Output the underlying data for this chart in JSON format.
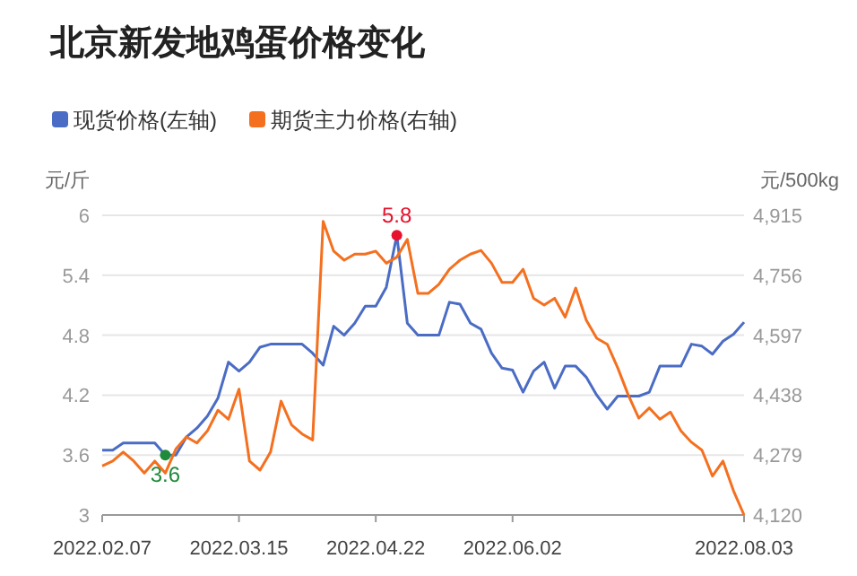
{
  "chart_data": {
    "type": "line",
    "title": "北京新发地鸡蛋价格变化",
    "ylabel": "元/斤",
    "y2label": "元/500kg",
    "categories": [
      "2022.02.07",
      null,
      null,
      null,
      null,
      null,
      null,
      null,
      null,
      null,
      null,
      null,
      null,
      "2022.03.15",
      null,
      null,
      null,
      null,
      null,
      null,
      null,
      null,
      null,
      null,
      null,
      null,
      "2022.04.22",
      null,
      null,
      null,
      null,
      null,
      null,
      null,
      null,
      null,
      null,
      null,
      null,
      "2022.06.02",
      null,
      null,
      null,
      null,
      null,
      null,
      null,
      null,
      null,
      null,
      null,
      null,
      null,
      null,
      null,
      null,
      null,
      null,
      null,
      null,
      null,
      "2022.08.03"
    ],
    "series": [
      {
        "name": "现货价格(左轴)",
        "color": "#4a6cc4",
        "axis": "y",
        "values": [
          3.65,
          3.65,
          3.72,
          3.72,
          3.72,
          3.72,
          3.6,
          3.6,
          3.78,
          3.87,
          3.99,
          4.17,
          4.53,
          4.44,
          4.53,
          4.68,
          4.71,
          4.71,
          4.71,
          4.71,
          4.62,
          4.5,
          4.89,
          4.8,
          4.92,
          5.09,
          5.09,
          5.28,
          5.8,
          4.92,
          4.8,
          4.8,
          4.8,
          5.13,
          5.11,
          4.92,
          4.86,
          4.62,
          4.47,
          4.45,
          4.23,
          4.44,
          4.53,
          4.27,
          4.49,
          4.49,
          4.38,
          4.2,
          4.06,
          4.19,
          4.19,
          4.19,
          4.23,
          4.49,
          4.49,
          4.49,
          4.71,
          4.69,
          4.61,
          4.74,
          4.81,
          4.93
        ],
        "value_labels": [
          null,
          null,
          null,
          null,
          null,
          null,
          "3.6",
          null,
          null,
          null,
          null,
          null,
          null,
          null,
          null,
          null,
          null,
          null,
          null,
          null,
          null,
          null,
          null,
          null,
          null,
          null,
          null,
          null,
          "5.8",
          null,
          null,
          null,
          null,
          null,
          null,
          null,
          null,
          null,
          null,
          null,
          null,
          null,
          null,
          null,
          null,
          null,
          null,
          null,
          null,
          null,
          null,
          null,
          null,
          null,
          null,
          null,
          null,
          null,
          null,
          null,
          null,
          null
        ]
      },
      {
        "name": "期货主力价格(右轴)",
        "color": "#f4701f",
        "axis": "y2",
        "values": [
          4250,
          4263,
          4287,
          4263,
          4231,
          4263,
          4231,
          4295,
          4327,
          4311,
          4343,
          4398,
          4374,
          4454,
          4263,
          4239,
          4287,
          4422,
          4359,
          4335,
          4319,
          4899,
          4820,
          4796,
          4812,
          4812,
          4820,
          4788,
          4804,
          4851,
          4708,
          4708,
          4732,
          4772,
          4796,
          4812,
          4822,
          4788,
          4737,
          4737,
          4772,
          4695,
          4677,
          4695,
          4645,
          4722,
          4637,
          4589,
          4573,
          4510,
          4438,
          4377,
          4404,
          4374,
          4393,
          4343,
          4313,
          4292,
          4223,
          4263,
          4184,
          4120
        ]
      }
    ],
    "ylim": [
      3,
      6
    ],
    "yticks": [
      3,
      3.6,
      4.2,
      4.8,
      5.4,
      6
    ],
    "y2lim": [
      4120,
      4915
    ],
    "y2ticks": [
      {
        "value": 4120,
        "label": "4,120"
      },
      {
        "value": 4279,
        "label": "4,279"
      },
      {
        "value": 4438,
        "label": "4,438"
      },
      {
        "value": 4597,
        "label": "4,597"
      },
      {
        "value": 4756,
        "label": "4,756"
      },
      {
        "value": 4915,
        "label": "4,915"
      }
    ],
    "grid": "y",
    "legend": "top left"
  }
}
